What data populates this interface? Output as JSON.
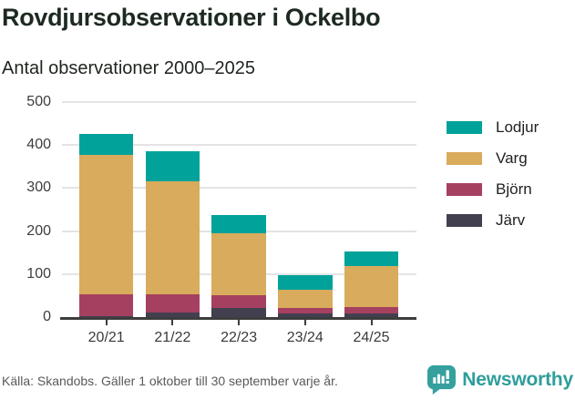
{
  "header": {
    "title": "Rovdjursobservationer i Ockelbo",
    "subtitle": "Antal observationer 2000–2025"
  },
  "chart_data": {
    "type": "bar",
    "stacked": true,
    "title": "Rovdjursobservationer i Ockelbo",
    "subtitle": "Antal observationer 2000–2025",
    "categories": [
      "20/21",
      "21/22",
      "22/23",
      "23/24",
      "24/25"
    ],
    "series": [
      {
        "name": "Järv",
        "color": "#42404f",
        "values": [
          2,
          10,
          22,
          8,
          8
        ]
      },
      {
        "name": "Björn",
        "color": "#a64060",
        "values": [
          51,
          43,
          28,
          14,
          15
        ]
      },
      {
        "name": "Varg",
        "color": "#d9ab5c",
        "values": [
          324,
          262,
          144,
          41,
          96
        ]
      },
      {
        "name": "Lodjur",
        "color": "#00a29a",
        "values": [
          48,
          71,
          44,
          34,
          34
        ]
      }
    ],
    "totals": [
      425,
      386,
      238,
      97,
      153
    ],
    "legend_order": [
      "Lodjur",
      "Varg",
      "Björn",
      "Järv"
    ],
    "legend_position": "right",
    "ylim": [
      0,
      500
    ],
    "yticks": [
      0,
      100,
      200,
      300,
      400,
      500
    ],
    "grid": true,
    "xlabel": "",
    "ylabel": ""
  },
  "footer": {
    "source": "Källa: Skandobs. Gäller 1 oktober till 30 september varje år.",
    "brand": "Newsworthy"
  },
  "colors": {
    "grid": "#e4e4e4",
    "axis": "#3d3d3d",
    "title_text": "#1d2a21",
    "brand_teal": "#2e9e9b",
    "logo_fill": "#35a09d"
  }
}
